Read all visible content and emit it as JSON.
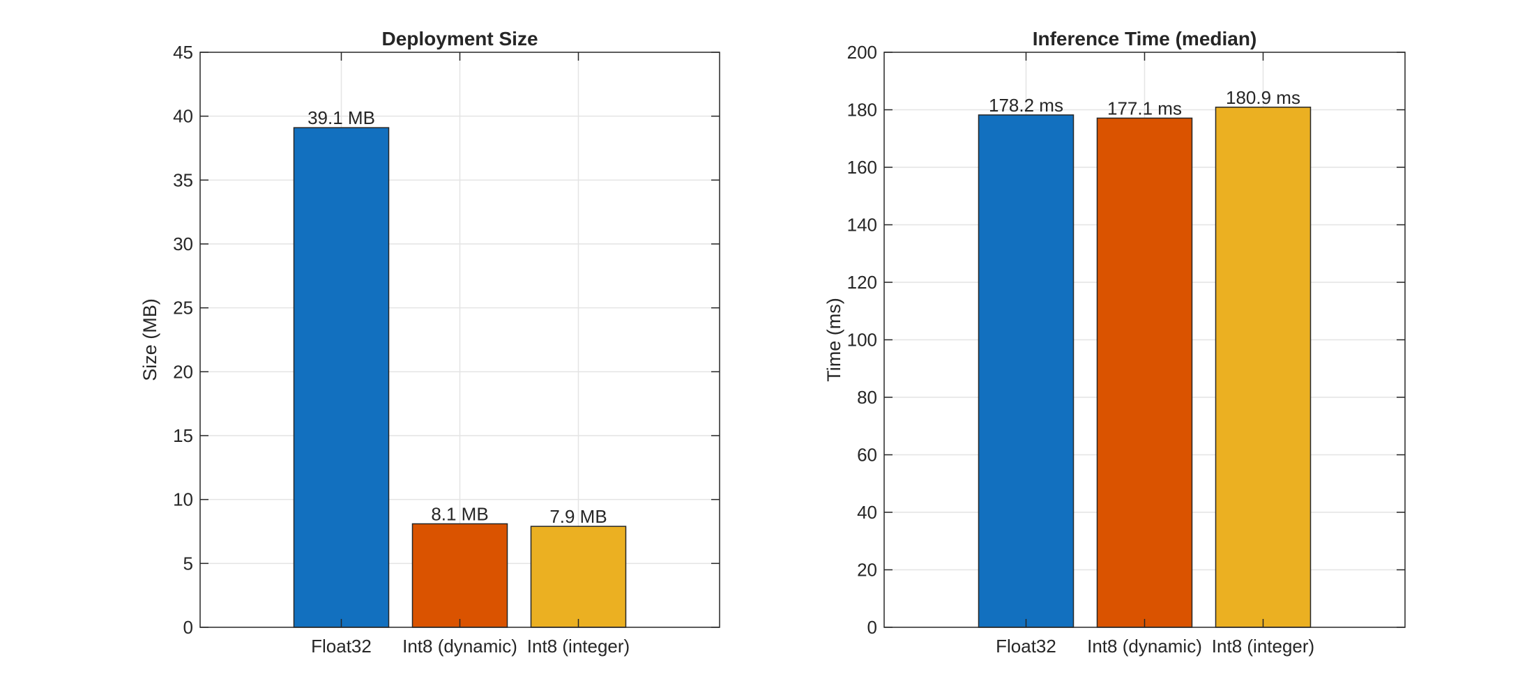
{
  "chart_data": [
    {
      "type": "bar",
      "title": "Deployment Size",
      "ylabel": "Size (MB)",
      "xlabel": "",
      "categories": [
        "Float32",
        "Int8 (dynamic)",
        "Int8 (integer)"
      ],
      "values": [
        39.1,
        8.1,
        7.9
      ],
      "data_labels": [
        "39.1 MB",
        "8.1 MB",
        "7.9 MB"
      ],
      "colors": [
        "#1270BF",
        "#DA5300",
        "#EBB022"
      ],
      "ylim": [
        0,
        45
      ],
      "yticks": [
        0,
        5,
        10,
        15,
        20,
        25,
        30,
        35,
        40,
        45
      ],
      "ytick_labels": [
        "0",
        "5",
        "10",
        "15",
        "20",
        "25",
        "30",
        "35",
        "40",
        "45"
      ],
      "grid": true
    },
    {
      "type": "bar",
      "title": "Inference Time (median)",
      "ylabel": "Time (ms)",
      "xlabel": "",
      "categories": [
        "Float32",
        "Int8 (dynamic)",
        "Int8 (integer)"
      ],
      "values": [
        178.2,
        177.1,
        180.9
      ],
      "data_labels": [
        "178.2 ms",
        "177.1 ms",
        "180.9 ms"
      ],
      "colors": [
        "#1270BF",
        "#DA5300",
        "#EBB022"
      ],
      "ylim": [
        0,
        200
      ],
      "yticks": [
        0,
        20,
        40,
        60,
        80,
        100,
        120,
        140,
        160,
        180,
        200
      ],
      "ytick_labels": [
        "0",
        "20",
        "40",
        "60",
        "80",
        "100",
        "120",
        "140",
        "160",
        "180",
        "200"
      ],
      "grid": true
    }
  ]
}
